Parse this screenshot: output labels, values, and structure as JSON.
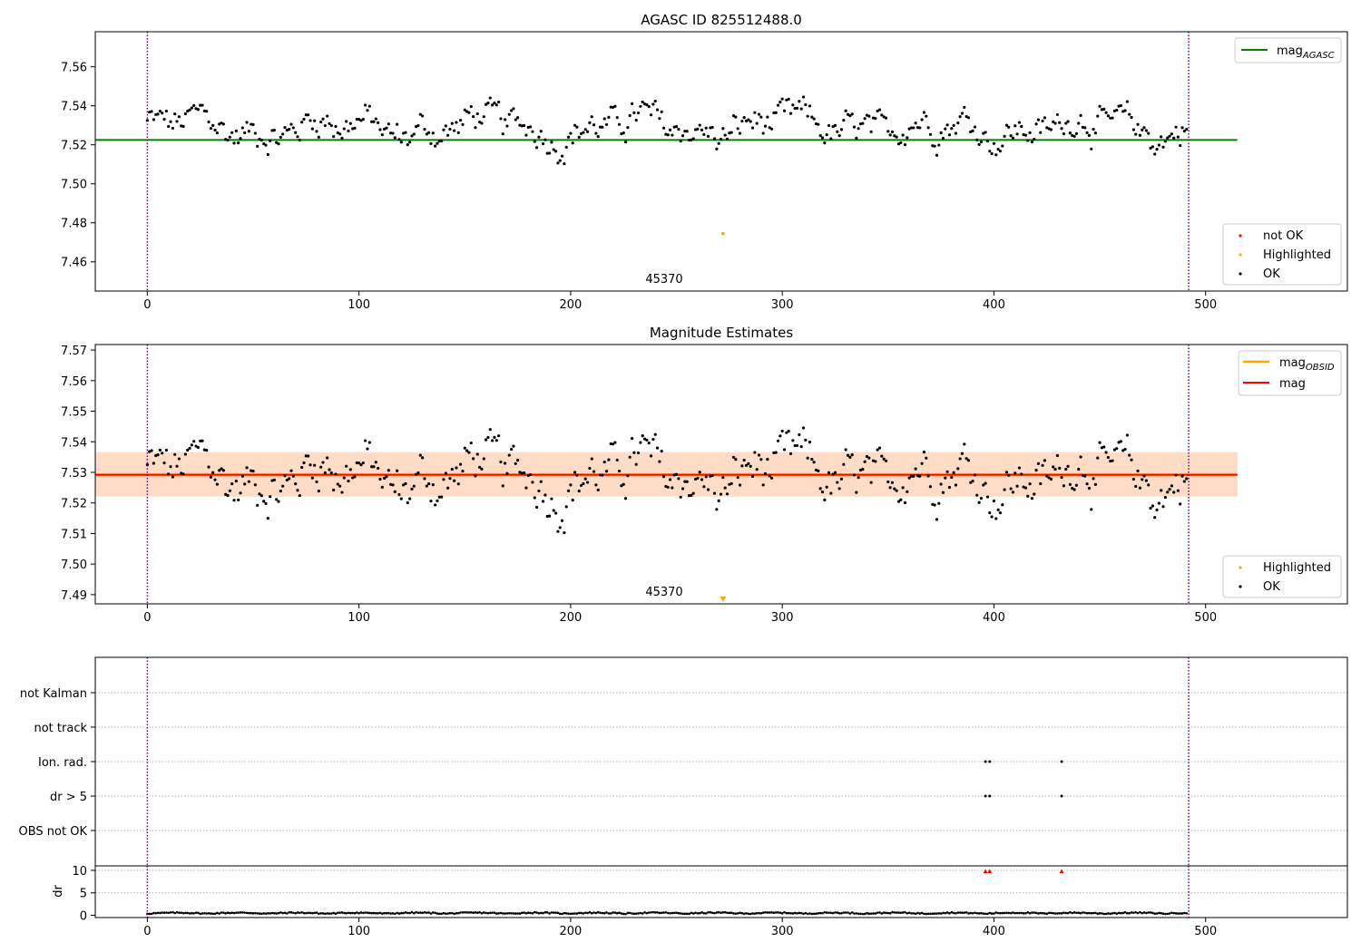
{
  "chart_data": [
    {
      "type": "scatter",
      "title": "AGASC ID 825512488.0",
      "xlim": [
        -24.6,
        567
      ],
      "ylim": [
        7.445,
        7.578
      ],
      "xticks": [
        "0",
        "100",
        "200",
        "300",
        "400",
        "500"
      ],
      "yticks": [
        "7.46",
        "7.48",
        "7.50",
        "7.52",
        "7.54",
        "7.56"
      ],
      "vlines_x": [
        0,
        492
      ],
      "obsid_label": "45370",
      "mag_agasc": 7.5225,
      "mag_agasc_xrange": [
        -24.6,
        515
      ],
      "highlighted_points": [
        [
          272,
          7.4745
        ]
      ],
      "ok_points_summary": {
        "n": 492,
        "x_range": [
          0,
          491
        ],
        "y_mean": 7.529,
        "y_min": 7.51,
        "y_max": 7.548
      },
      "legend_lines": [
        "mag_AGASC"
      ],
      "legend_markers": [
        "not OK",
        "Highlighted",
        "OK"
      ],
      "colors": {
        "ok": "#000000",
        "not_ok": "#ff0000",
        "highlighted": "#ffa500",
        "mag_agasc": "#008000",
        "vline": "#800080"
      }
    },
    {
      "type": "scatter",
      "title": "Magnitude Estimates",
      "xlim": [
        -24.6,
        567
      ],
      "ylim": [
        7.487,
        7.5718
      ],
      "xticks": [
        "0",
        "100",
        "200",
        "300",
        "400",
        "500"
      ],
      "yticks": [
        "7.49",
        "7.50",
        "7.51",
        "7.52",
        "7.53",
        "7.54",
        "7.55",
        "7.56",
        "7.57"
      ],
      "vlines_x": [
        0,
        492
      ],
      "obsid_label": "45370",
      "mag": 7.5292,
      "mag_band": [
        7.5221,
        7.5366
      ],
      "mag_obsid": 7.5292,
      "mag_obsid_band": [
        7.5221,
        7.5366
      ],
      "band_xrange": [
        -24.6,
        515
      ],
      "highlighted_points": [
        [
          272,
          7.4885
        ]
      ],
      "legend_lines": [
        "mag_OBSID",
        "mag"
      ],
      "legend_markers": [
        "Highlighted",
        "OK"
      ],
      "colors": {
        "ok": "#000000",
        "highlighted": "#ffa500",
        "mag": "#ff0000",
        "mag_obsid": "#ffa500",
        "band_mag": "#ffc0cb",
        "band_obsid": "#ffdab9"
      }
    },
    {
      "type": "scatter",
      "title": "",
      "xlim": [
        -24.6,
        567
      ],
      "xticks": [
        "0",
        "100",
        "200",
        "300",
        "400",
        "500"
      ],
      "flag_rows": [
        "not Kalman",
        "not track",
        "Ion. rad.",
        "dr > 5",
        "OBS not OK"
      ],
      "flag_points": {
        "Ion. rad.": [
          396,
          398,
          432
        ],
        "dr > 5": [
          396,
          398,
          432
        ]
      }
    },
    {
      "type": "scatter",
      "title": "",
      "ylabel": "dr",
      "xlim": [
        -24.6,
        567
      ],
      "ylim": [
        -0.5,
        11
      ],
      "xticks": [
        "0",
        "100",
        "200",
        "300",
        "400",
        "500"
      ],
      "yticks": [
        "0",
        "5",
        "10"
      ],
      "outliers": [
        [
          396,
          9.8
        ],
        [
          398,
          9.8
        ],
        [
          432,
          9.8
        ]
      ],
      "colors": {
        "ok": "#000000",
        "outlier": "#ff0000"
      }
    }
  ]
}
